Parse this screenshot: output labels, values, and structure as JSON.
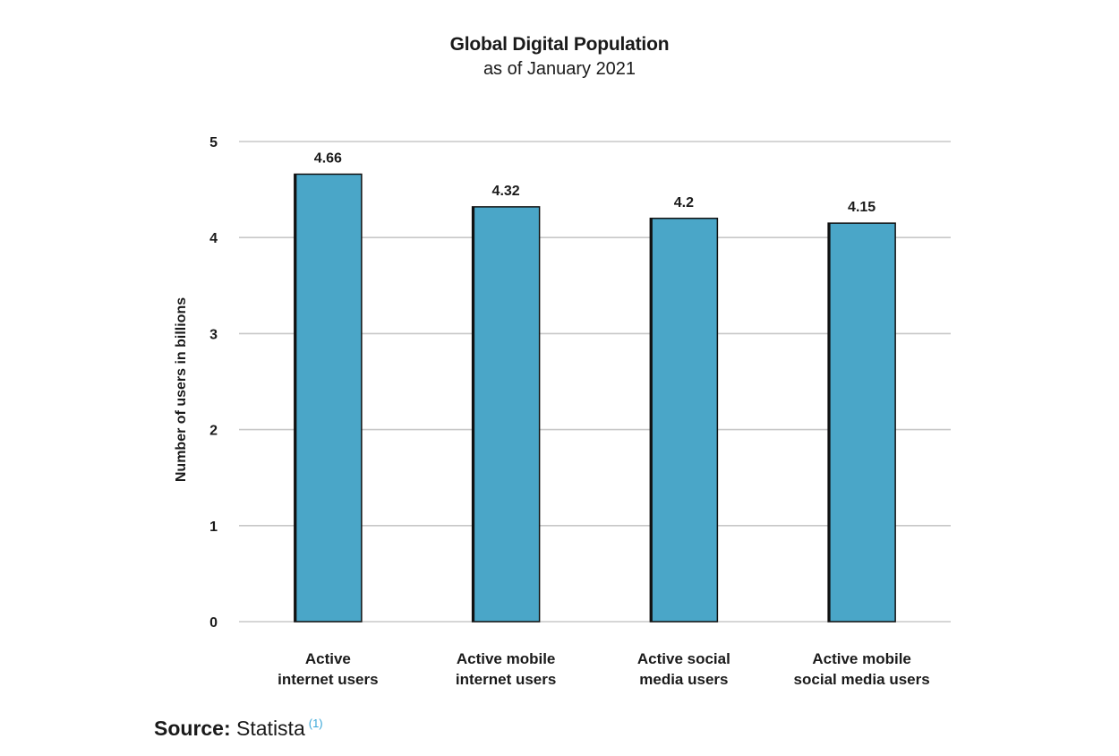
{
  "chart_data": {
    "type": "bar",
    "title": "Global Digital Population",
    "subtitle": "as of January 2021",
    "categories": [
      [
        "Active",
        "internet users"
      ],
      [
        "Active mobile",
        "internet users"
      ],
      [
        "Active social",
        "media users"
      ],
      [
        "Active mobile",
        "social media users"
      ]
    ],
    "values": [
      4.66,
      4.32,
      4.2,
      4.15
    ],
    "data_labels": [
      "4.66",
      "4.32",
      "4.2",
      "4.15"
    ],
    "ylabel": "Number of users in billions",
    "xlabel": "",
    "ylim": [
      0,
      5
    ],
    "yticks": [
      0,
      1,
      2,
      3,
      4,
      5
    ],
    "grid": true,
    "bar_color": "#4aa6c8",
    "bar_edge_color": "#111111",
    "grid_color": "#c8c8c8"
  },
  "source": {
    "label": "Source:",
    "text": "Statista",
    "ref": "(1)",
    "ref_color": "#3aa7d8"
  }
}
